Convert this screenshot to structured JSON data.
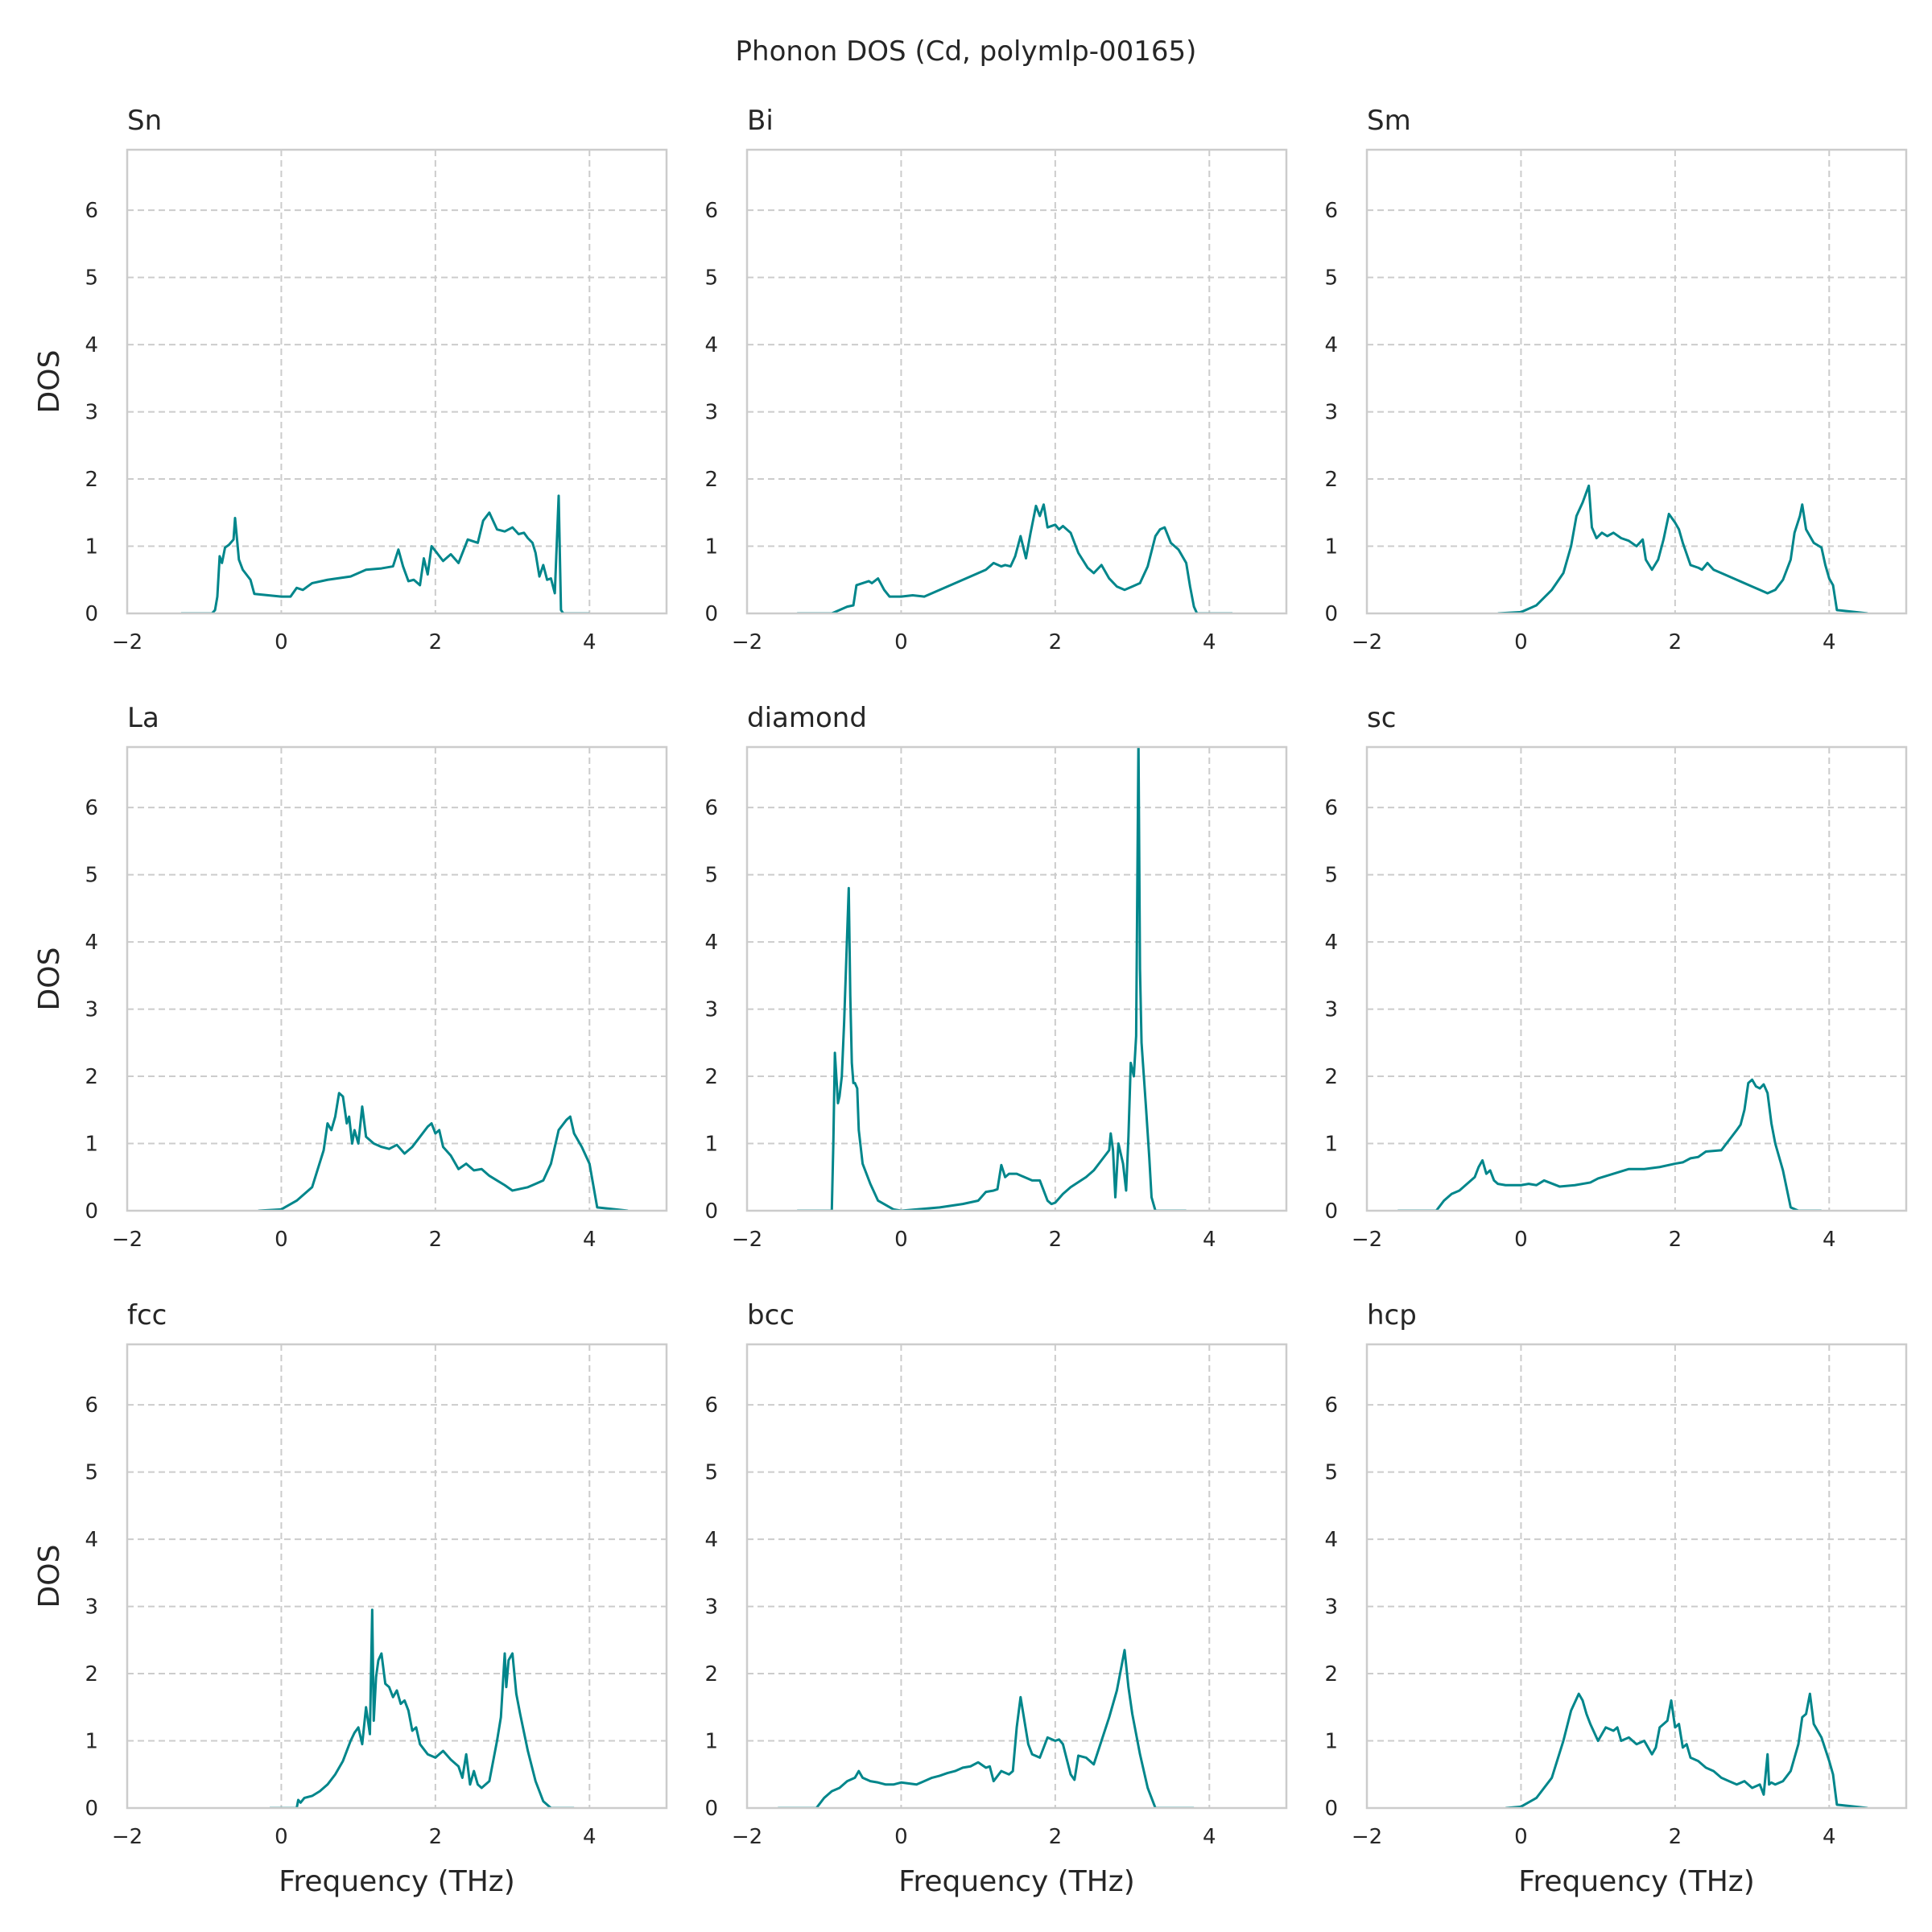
{
  "figure": {
    "title": "Phonon DOS (Cd, polymlp-00165)",
    "line_color": "#00868b",
    "grid_color": "#cccccc",
    "frame_color": "#cccccc",
    "text_color": "#262626"
  },
  "chart_data": [
    {
      "type": "line",
      "title": "Sn",
      "xlabel": "",
      "ylabel": "DOS",
      "xlim": [
        -2,
        5
      ],
      "ylim": [
        0,
        6.9
      ],
      "xticks": [
        "−2",
        "0",
        "2",
        "4"
      ],
      "yticks": [
        "0",
        "1",
        "2",
        "3",
        "4",
        "5",
        "6"
      ],
      "grid": true,
      "x": [
        -1.3,
        -0.9,
        -0.86,
        -0.83,
        -0.8,
        -0.77,
        -0.73,
        -0.68,
        -0.62,
        -0.6,
        -0.55,
        -0.5,
        -0.4,
        -0.35,
        0.0,
        0.12,
        0.2,
        0.28,
        0.4,
        0.6,
        0.9,
        1.1,
        1.3,
        1.45,
        1.52,
        1.58,
        1.65,
        1.72,
        1.8,
        1.85,
        1.9,
        1.95,
        2.02,
        2.1,
        2.2,
        2.3,
        2.42,
        2.55,
        2.62,
        2.7,
        2.8,
        2.9,
        3.0,
        3.08,
        3.15,
        3.2,
        3.26,
        3.3,
        3.35,
        3.4,
        3.45,
        3.5,
        3.55,
        3.6,
        3.63,
        3.66,
        4.0
      ],
      "y": [
        0,
        0,
        0.05,
        0.25,
        0.85,
        0.75,
        0.98,
        1.02,
        1.1,
        1.42,
        0.8,
        0.65,
        0.5,
        0.29,
        0.25,
        0.25,
        0.38,
        0.35,
        0.45,
        0.5,
        0.55,
        0.65,
        0.67,
        0.7,
        0.95,
        0.7,
        0.48,
        0.5,
        0.42,
        0.82,
        0.58,
        1.0,
        0.9,
        0.78,
        0.88,
        0.75,
        1.1,
        1.05,
        1.38,
        1.5,
        1.25,
        1.22,
        1.28,
        1.18,
        1.2,
        1.12,
        1.05,
        0.9,
        0.55,
        0.72,
        0.5,
        0.52,
        0.3,
        1.75,
        0.05,
        0,
        0
      ]
    },
    {
      "type": "line",
      "title": "Bi",
      "xlabel": "",
      "ylabel": "",
      "xlim": [
        -2,
        5
      ],
      "ylim": [
        0,
        6.9
      ],
      "xticks": [
        "−2",
        "0",
        "2",
        "4"
      ],
      "yticks": [
        "0",
        "1",
        "2",
        "3",
        "4",
        "5",
        "6"
      ],
      "grid": true,
      "x": [
        -1.35,
        -0.9,
        -0.7,
        -0.62,
        -0.58,
        -0.5,
        -0.42,
        -0.38,
        -0.3,
        -0.22,
        -0.15,
        0.0,
        0.15,
        0.3,
        0.6,
        0.9,
        1.1,
        1.2,
        1.3,
        1.35,
        1.42,
        1.48,
        1.55,
        1.62,
        1.68,
        1.75,
        1.8,
        1.85,
        1.9,
        2.0,
        2.05,
        2.1,
        2.2,
        2.3,
        2.42,
        2.5,
        2.6,
        2.7,
        2.8,
        2.9,
        3.0,
        3.1,
        3.2,
        3.3,
        3.36,
        3.42,
        3.5,
        3.6,
        3.7,
        3.75,
        3.8,
        3.84,
        4.3
      ],
      "y": [
        0,
        0,
        0.1,
        0.12,
        0.42,
        0.45,
        0.48,
        0.45,
        0.52,
        0.35,
        0.25,
        0.25,
        0.27,
        0.25,
        0.4,
        0.55,
        0.65,
        0.75,
        0.7,
        0.72,
        0.7,
        0.85,
        1.15,
        0.82,
        1.2,
        1.6,
        1.45,
        1.62,
        1.28,
        1.32,
        1.25,
        1.3,
        1.2,
        0.9,
        0.68,
        0.6,
        0.72,
        0.52,
        0.4,
        0.35,
        0.4,
        0.45,
        0.7,
        1.15,
        1.25,
        1.28,
        1.05,
        0.95,
        0.75,
        0.4,
        0.1,
        0,
        0
      ]
    },
    {
      "type": "line",
      "title": "Sm",
      "xlabel": "",
      "ylabel": "",
      "xlim": [
        -2,
        5
      ],
      "ylim": [
        0,
        6.9
      ],
      "xticks": [
        "−2",
        "0",
        "2",
        "4"
      ],
      "yticks": [
        "0",
        "1",
        "2",
        "3",
        "4",
        "5",
        "6"
      ],
      "grid": true,
      "x": [
        -0.3,
        0.0,
        0.2,
        0.4,
        0.55,
        0.65,
        0.72,
        0.8,
        0.88,
        0.92,
        0.98,
        1.05,
        1.12,
        1.2,
        1.3,
        1.4,
        1.5,
        1.58,
        1.62,
        1.7,
        1.78,
        1.85,
        1.92,
        2.0,
        2.05,
        2.1,
        2.2,
        2.3,
        2.35,
        2.42,
        2.5,
        2.6,
        2.8,
        3.0,
        3.1,
        3.2,
        3.3,
        3.4,
        3.5,
        3.55,
        3.62,
        3.65,
        3.7,
        3.8,
        3.9,
        3.95,
        4.0,
        4.05,
        4.1,
        4.5
      ],
      "y": [
        0,
        0.02,
        0.12,
        0.35,
        0.6,
        1.0,
        1.45,
        1.65,
        1.9,
        1.28,
        1.12,
        1.2,
        1.15,
        1.2,
        1.12,
        1.08,
        1.0,
        1.1,
        0.8,
        0.65,
        0.8,
        1.1,
        1.48,
        1.35,
        1.25,
        1.05,
        0.72,
        0.68,
        0.65,
        0.75,
        0.65,
        0.6,
        0.5,
        0.4,
        0.35,
        0.3,
        0.35,
        0.5,
        0.8,
        1.2,
        1.45,
        1.62,
        1.25,
        1.05,
        0.98,
        0.72,
        0.52,
        0.42,
        0.05,
        0
      ]
    },
    {
      "type": "line",
      "title": "La",
      "xlabel": "",
      "ylabel": "DOS",
      "xlim": [
        -2,
        5
      ],
      "ylim": [
        0,
        6.9
      ],
      "xticks": [
        "−2",
        "0",
        "2",
        "4"
      ],
      "yticks": [
        "0",
        "1",
        "2",
        "3",
        "4",
        "5",
        "6"
      ],
      "grid": true,
      "x": [
        -0.3,
        0.0,
        0.2,
        0.4,
        0.55,
        0.6,
        0.65,
        0.7,
        0.75,
        0.8,
        0.85,
        0.88,
        0.92,
        0.95,
        1.0,
        1.05,
        1.1,
        1.2,
        1.3,
        1.4,
        1.5,
        1.6,
        1.7,
        1.8,
        1.9,
        1.95,
        2.0,
        2.05,
        2.1,
        2.2,
        2.3,
        2.4,
        2.5,
        2.6,
        2.7,
        2.8,
        2.9,
        3.0,
        3.2,
        3.3,
        3.4,
        3.5,
        3.6,
        3.7,
        3.75,
        3.8,
        3.9,
        4.0,
        4.1,
        4.5
      ],
      "y": [
        0,
        0.02,
        0.15,
        0.35,
        0.9,
        1.3,
        1.2,
        1.4,
        1.75,
        1.7,
        1.3,
        1.4,
        1.0,
        1.2,
        1.0,
        1.55,
        1.1,
        1.0,
        0.95,
        0.92,
        0.98,
        0.85,
        0.95,
        1.1,
        1.25,
        1.3,
        1.15,
        1.2,
        0.95,
        0.82,
        0.62,
        0.7,
        0.6,
        0.62,
        0.52,
        0.45,
        0.38,
        0.3,
        0.35,
        0.4,
        0.45,
        0.7,
        1.2,
        1.35,
        1.4,
        1.15,
        0.95,
        0.7,
        0.05,
        0
      ]
    },
    {
      "type": "line",
      "title": "diamond",
      "xlabel": "",
      "ylabel": "",
      "xlim": [
        -2,
        5
      ],
      "ylim": [
        0,
        6.9
      ],
      "xticks": [
        "−2",
        "0",
        "2",
        "4"
      ],
      "yticks": [
        "0",
        "1",
        "2",
        "3",
        "4",
        "5",
        "6"
      ],
      "grid": true,
      "x": [
        -1.35,
        -0.9,
        -0.88,
        -0.86,
        -0.82,
        -0.8,
        -0.77,
        -0.74,
        -0.71,
        -0.68,
        -0.66,
        -0.64,
        -0.62,
        -0.6,
        -0.57,
        -0.55,
        -0.5,
        -0.4,
        -0.3,
        -0.1,
        0.0,
        0.2,
        0.5,
        0.8,
        1.0,
        1.1,
        1.2,
        1.25,
        1.3,
        1.35,
        1.4,
        1.5,
        1.6,
        1.7,
        1.8,
        1.85,
        1.9,
        1.95,
        2.0,
        2.1,
        2.2,
        2.4,
        2.5,
        2.6,
        2.7,
        2.72,
        2.75,
        2.78,
        2.82,
        2.85,
        2.88,
        2.92,
        2.95,
        2.98,
        3.02,
        3.05,
        3.08,
        3.1,
        3.12,
        3.15,
        3.18,
        3.22,
        3.25,
        3.3,
        3.7
      ],
      "y": [
        0,
        0,
        1.0,
        2.35,
        1.6,
        1.7,
        2.0,
        2.8,
        3.8,
        4.8,
        3.2,
        2.2,
        1.9,
        1.9,
        1.82,
        1.2,
        0.7,
        0.4,
        0.15,
        0.02,
        0.0,
        0.02,
        0.05,
        0.1,
        0.15,
        0.28,
        0.3,
        0.32,
        0.68,
        0.5,
        0.55,
        0.55,
        0.5,
        0.45,
        0.45,
        0.3,
        0.15,
        0.1,
        0.12,
        0.25,
        0.35,
        0.5,
        0.6,
        0.75,
        0.9,
        1.15,
        0.9,
        0.2,
        1.0,
        0.85,
        0.7,
        0.3,
        1.1,
        2.2,
        2.0,
        2.6,
        7.0,
        3.6,
        2.5,
        2.0,
        1.5,
        0.8,
        0.2,
        0,
        0
      ]
    },
    {
      "type": "line",
      "title": "sc",
      "xlabel": "",
      "ylabel": "",
      "xlim": [
        -2,
        5
      ],
      "ylim": [
        0,
        6.9
      ],
      "xticks": [
        "−2",
        "0",
        "2",
        "4"
      ],
      "yticks": [
        "0",
        "1",
        "2",
        "3",
        "4",
        "5",
        "6"
      ],
      "grid": true,
      "x": [
        -1.6,
        -1.1,
        -1.0,
        -0.9,
        -0.8,
        -0.7,
        -0.6,
        -0.55,
        -0.5,
        -0.45,
        -0.4,
        -0.35,
        -0.3,
        -0.2,
        0.0,
        0.1,
        0.2,
        0.3,
        0.5,
        0.7,
        0.9,
        1.0,
        1.2,
        1.4,
        1.6,
        1.8,
        2.0,
        2.1,
        2.2,
        2.3,
        2.4,
        2.6,
        2.7,
        2.8,
        2.85,
        2.9,
        2.95,
        3.0,
        3.05,
        3.1,
        3.15,
        3.2,
        3.25,
        3.3,
        3.4,
        3.5,
        3.6,
        3.9
      ],
      "y": [
        0,
        0,
        0.15,
        0.25,
        0.3,
        0.4,
        0.5,
        0.65,
        0.75,
        0.55,
        0.6,
        0.45,
        0.4,
        0.38,
        0.38,
        0.4,
        0.38,
        0.45,
        0.36,
        0.38,
        0.42,
        0.48,
        0.55,
        0.62,
        0.62,
        0.65,
        0.7,
        0.72,
        0.78,
        0.8,
        0.88,
        0.9,
        1.05,
        1.2,
        1.28,
        1.5,
        1.9,
        1.95,
        1.85,
        1.82,
        1.88,
        1.75,
        1.3,
        1.0,
        0.6,
        0.05,
        0,
        0
      ]
    },
    {
      "type": "line",
      "title": "fcc",
      "xlabel": "Frequency (THz)",
      "ylabel": "DOS",
      "xlim": [
        -2,
        5
      ],
      "ylim": [
        0,
        6.9
      ],
      "xticks": [
        "−2",
        "0",
        "2",
        "4"
      ],
      "yticks": [
        "0",
        "1",
        "2",
        "3",
        "4",
        "5",
        "6"
      ],
      "grid": true,
      "x": [
        -0.15,
        0.2,
        0.22,
        0.25,
        0.3,
        0.4,
        0.5,
        0.6,
        0.7,
        0.8,
        0.9,
        0.95,
        1.0,
        1.05,
        1.1,
        1.15,
        1.18,
        1.2,
        1.23,
        1.26,
        1.3,
        1.35,
        1.4,
        1.45,
        1.5,
        1.55,
        1.6,
        1.65,
        1.7,
        1.75,
        1.8,
        1.9,
        2.0,
        2.1,
        2.2,
        2.3,
        2.35,
        2.4,
        2.45,
        2.5,
        2.55,
        2.6,
        2.7,
        2.8,
        2.85,
        2.9,
        2.92,
        2.95,
        3.0,
        3.05,
        3.1,
        3.2,
        3.3,
        3.4,
        3.5,
        3.8
      ],
      "y": [
        0,
        0,
        0.12,
        0.08,
        0.15,
        0.18,
        0.25,
        0.35,
        0.5,
        0.7,
        1.0,
        1.12,
        1.2,
        0.95,
        1.5,
        1.1,
        2.95,
        1.3,
        1.95,
        2.2,
        2.3,
        1.85,
        1.8,
        1.65,
        1.75,
        1.55,
        1.6,
        1.45,
        1.15,
        1.2,
        0.95,
        0.8,
        0.75,
        0.85,
        0.72,
        0.62,
        0.45,
        0.8,
        0.35,
        0.55,
        0.35,
        0.3,
        0.4,
        1.0,
        1.35,
        2.3,
        1.8,
        2.2,
        2.3,
        1.7,
        1.4,
        0.85,
        0.4,
        0.1,
        0,
        0
      ]
    },
    {
      "type": "line",
      "title": "bcc",
      "xlabel": "Frequency (THz)",
      "ylabel": "",
      "xlim": [
        -2,
        5
      ],
      "ylim": [
        0,
        6.9
      ],
      "xticks": [
        "−2",
        "0",
        "2",
        "4"
      ],
      "yticks": [
        "0",
        "1",
        "2",
        "3",
        "4",
        "5",
        "6"
      ],
      "grid": true,
      "x": [
        -1.6,
        -1.1,
        -1.0,
        -0.9,
        -0.8,
        -0.7,
        -0.6,
        -0.55,
        -0.5,
        -0.4,
        -0.3,
        -0.2,
        -0.1,
        0.0,
        0.2,
        0.4,
        0.5,
        0.6,
        0.7,
        0.8,
        0.9,
        1.0,
        1.1,
        1.15,
        1.2,
        1.3,
        1.4,
        1.45,
        1.5,
        1.55,
        1.6,
        1.65,
        1.7,
        1.8,
        1.85,
        1.9,
        2.0,
        2.05,
        2.1,
        2.2,
        2.25,
        2.3,
        2.4,
        2.5,
        2.6,
        2.7,
        2.8,
        2.9,
        2.95,
        3.0,
        3.1,
        3.2,
        3.3,
        3.8
      ],
      "y": [
        0,
        0,
        0.15,
        0.25,
        0.3,
        0.4,
        0.45,
        0.55,
        0.45,
        0.4,
        0.38,
        0.35,
        0.35,
        0.38,
        0.35,
        0.45,
        0.48,
        0.52,
        0.55,
        0.6,
        0.62,
        0.68,
        0.6,
        0.62,
        0.4,
        0.55,
        0.5,
        0.55,
        1.2,
        1.65,
        1.3,
        0.95,
        0.8,
        0.75,
        0.9,
        1.05,
        1.0,
        1.02,
        0.95,
        0.5,
        0.42,
        0.78,
        0.75,
        0.65,
        1.0,
        1.35,
        1.75,
        2.35,
        1.8,
        1.4,
        0.8,
        0.3,
        0,
        0
      ]
    },
    {
      "type": "line",
      "title": "hcp",
      "xlabel": "Frequency (THz)",
      "ylabel": "",
      "xlim": [
        -2,
        5
      ],
      "ylim": [
        0,
        6.9
      ],
      "xticks": [
        "−2",
        "0",
        "2",
        "4"
      ],
      "yticks": [
        "0",
        "1",
        "2",
        "3",
        "4",
        "5",
        "6"
      ],
      "grid": true,
      "x": [
        -0.2,
        0.0,
        0.2,
        0.4,
        0.55,
        0.65,
        0.75,
        0.8,
        0.85,
        0.9,
        1.0,
        1.1,
        1.2,
        1.25,
        1.3,
        1.4,
        1.5,
        1.6,
        1.7,
        1.75,
        1.8,
        1.9,
        1.95,
        2.0,
        2.05,
        2.1,
        2.15,
        2.2,
        2.3,
        2.4,
        2.5,
        2.6,
        2.7,
        2.8,
        2.9,
        3.0,
        3.1,
        3.15,
        3.2,
        3.22,
        3.25,
        3.3,
        3.4,
        3.5,
        3.6,
        3.65,
        3.7,
        3.75,
        3.8,
        3.9,
        4.0,
        4.05,
        4.1,
        4.5
      ],
      "y": [
        0,
        0.02,
        0.15,
        0.45,
        1.0,
        1.45,
        1.7,
        1.6,
        1.4,
        1.25,
        1.0,
        1.2,
        1.15,
        1.2,
        1.0,
        1.05,
        0.95,
        1.0,
        0.8,
        0.9,
        1.2,
        1.3,
        1.6,
        1.2,
        1.25,
        0.9,
        0.95,
        0.75,
        0.7,
        0.6,
        0.55,
        0.45,
        0.4,
        0.35,
        0.4,
        0.3,
        0.35,
        0.2,
        0.8,
        0.35,
        0.38,
        0.35,
        0.4,
        0.55,
        0.95,
        1.35,
        1.4,
        1.7,
        1.25,
        1.05,
        0.7,
        0.5,
        0.05,
        0
      ]
    }
  ]
}
